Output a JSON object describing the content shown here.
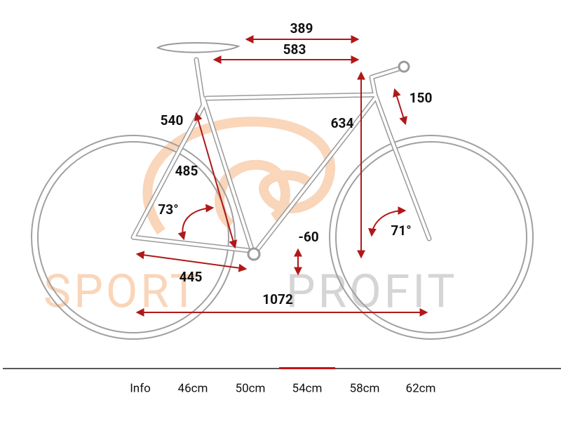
{
  "diagram": {
    "watermark": [
      "SPORT",
      "PROFIT"
    ],
    "measurements": [
      "389",
      "583",
      "150",
      "540",
      "634",
      "485",
      "73°",
      "71°",
      "-60",
      "445",
      "1072"
    ]
  },
  "tabs": {
    "items": [
      "Info",
      "46cm",
      "50cm",
      "54cm",
      "58cm",
      "62cm"
    ],
    "selected_index": 3
  }
}
